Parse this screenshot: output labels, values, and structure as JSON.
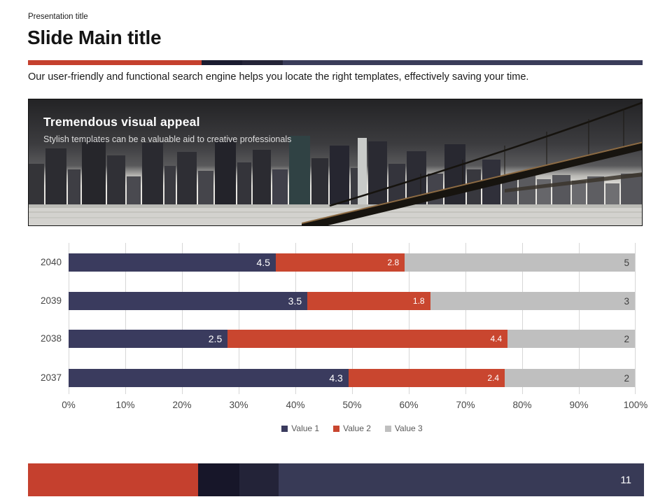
{
  "header": {
    "eyebrow": "Presentation title",
    "title": "Slide Main title",
    "divider_colors": [
      "#c5402e",
      "#1b1c30",
      "#242438",
      "#3a3c5a"
    ]
  },
  "intro_text": "Our user-friendly and functional search engine helps you locate the right templates, effectively saving your time.",
  "banner": {
    "heading": "Tremendous visual appeal",
    "subheading": "Stylish templates can be a valuable aid to creative professionals"
  },
  "chart_data": {
    "type": "bar",
    "variant": "stacked-100-horizontal",
    "title": "",
    "categories": [
      "2040",
      "2039",
      "2038",
      "2037"
    ],
    "series": [
      {
        "name": "Value 1",
        "color": "#3a3b5e",
        "values": [
          4.5,
          3.5,
          2.5,
          4.3
        ]
      },
      {
        "name": "Value 2",
        "color": "#c9462f",
        "values": [
          2.8,
          1.8,
          4.4,
          2.4
        ]
      },
      {
        "name": "Value 3",
        "color": "#bfbfbf",
        "values": [
          5,
          3,
          2,
          2
        ]
      }
    ],
    "x_ticks": [
      "0%",
      "10%",
      "20%",
      "30%",
      "40%",
      "50%",
      "60%",
      "70%",
      "80%",
      "90%",
      "100%"
    ],
    "xlim": [
      0,
      100
    ],
    "grid": true,
    "gridline_color": "#d6d6d6",
    "axis_text_color": "#474747",
    "legend_position": "bottom",
    "data_labels": true
  },
  "footer": {
    "colors": [
      "#c5402e",
      "#171629",
      "#232338",
      "#383a56"
    ],
    "page_number": "11"
  }
}
